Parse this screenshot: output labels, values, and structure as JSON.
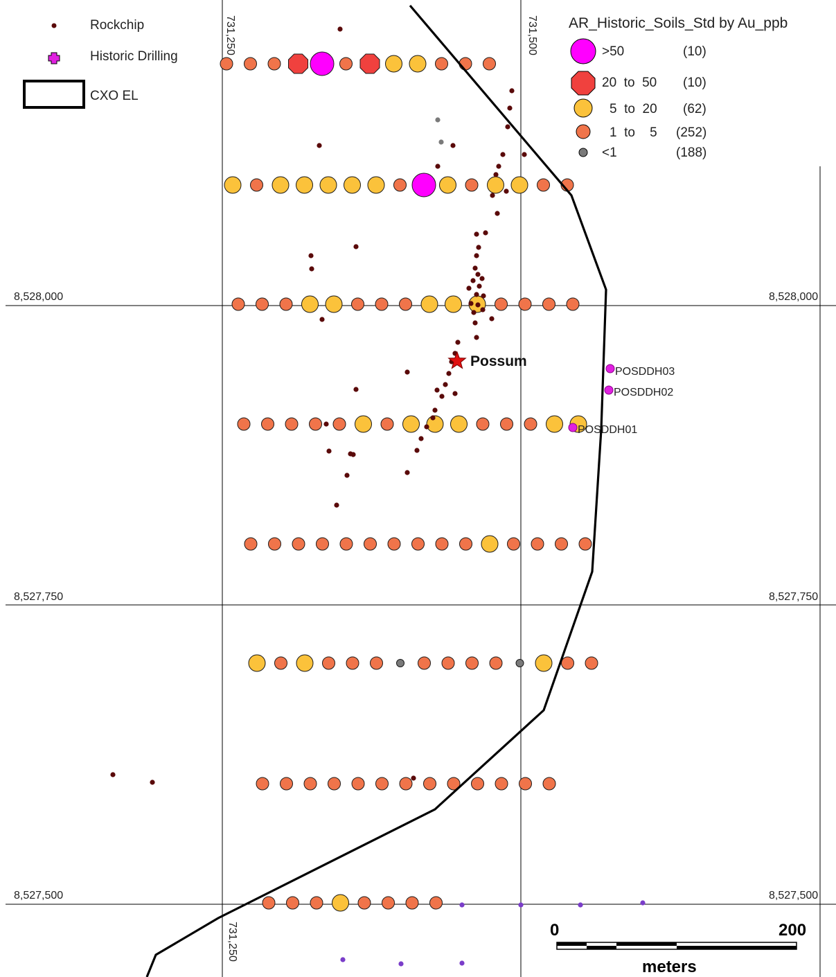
{
  "colors": {
    "gt50": "#ff00ff",
    "c20_50": "#f0413e",
    "c5_20": "#fbc23b",
    "c1_5": "#f0744a",
    "lt1": "#7a7a7a",
    "rockchip": "#5a0a0a",
    "drilling": "#e020e0",
    "purple_small": "#7a3dc9",
    "boundary": "#000000"
  },
  "grid": {
    "easting_labels": [
      "731,250",
      "731,500"
    ],
    "northing_labels": [
      "8,528,000",
      "8,527,750",
      "8,527,500"
    ]
  },
  "legend_left": {
    "rockchip": "Rockchip",
    "historic_drilling": "Historic Drilling",
    "cxo_el": "CXO EL"
  },
  "legend_right": {
    "title": "AR_Historic_Soils_Std by Au_ppb",
    "classes": [
      {
        "label": ">50",
        "count": "(10)",
        "icon": "circle-xl-magenta"
      },
      {
        "label": "20  to  50",
        "count": "(10)",
        "icon": "octagon-red"
      },
      {
        "label": "5  to  20",
        "count": "(62)",
        "icon": "circle-yellow"
      },
      {
        "label": "1  to    5",
        "count": "(252)",
        "icon": "circle-orange"
      },
      {
        "label": "<1",
        "count": "(188)",
        "icon": "circle-grey"
      }
    ]
  },
  "places": {
    "possum": "Possum"
  },
  "drill_holes": [
    "POSDDH03",
    "POSDDH02",
    "POSDDH01"
  ],
  "scale_bar": {
    "start": "0",
    "end": "200",
    "unit": "meters"
  }
}
